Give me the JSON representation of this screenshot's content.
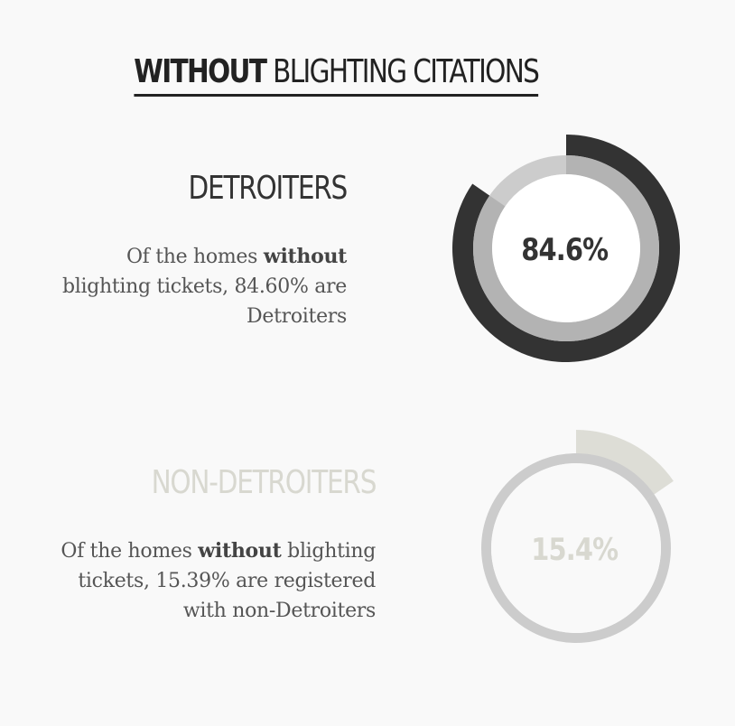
{
  "title": {
    "bold": "WITHOUT",
    "rest": " BLIGHTING CITATIONS"
  },
  "sections": [
    {
      "heading": "DETROITERS",
      "desc_pre": "Of the homes ",
      "desc_bold": "without",
      "desc_line1_rest": "",
      "desc_line2": "blighting tickets, 84.60% are",
      "desc_line3": "Detroiters"
    },
    {
      "heading": "NON-DETROITERS",
      "desc_pre": "Of the homes ",
      "desc_bold": "without",
      "desc_line1_rest": " blighting",
      "desc_line2": "tickets, 15.39% are registered",
      "desc_line3": "with non-Detroiters"
    }
  ],
  "chart_data": [
    {
      "type": "pie",
      "value_percent": 84.6,
      "label": "84.6%",
      "colors": {
        "highlight": "#333333",
        "inner": "#b3b3b3",
        "track": "#cccccc",
        "label": "#333333",
        "heading": "#333333"
      }
    },
    {
      "type": "pie",
      "value_percent": 15.4,
      "label": "15.4%",
      "colors": {
        "highlight": "#ddddd6",
        "inner": "#cccccc",
        "track": "#cccccc",
        "label": "#d8d8d0",
        "heading": "#d8d8d0"
      }
    }
  ]
}
